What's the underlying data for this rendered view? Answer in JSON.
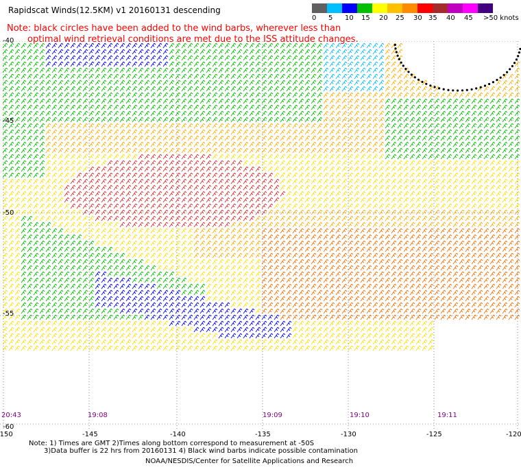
{
  "header": {
    "title": "Rapidscat Winds(12.5KM)  v1  20160131  descending"
  },
  "note": {
    "line1": "Note: black circles have been added to the wind barbs, wherever less than",
    "line2": "optimal wind retrieval conditions are met due to the ISS attitude changes."
  },
  "legend": {
    "colors": [
      "#606060",
      "#00bfff",
      "#0000ff",
      "#00c000",
      "#ffff00",
      "#ffc000",
      "#ff8c00",
      "#ff0000",
      "#a52a2a",
      "#c000c0",
      "#ff00ff",
      "#400080"
    ],
    "labels": [
      "0",
      "5",
      "10",
      "15",
      "20",
      "25",
      "30",
      "35",
      "40",
      "45",
      ">50 knots"
    ]
  },
  "map": {
    "lat_labels": [
      "-40",
      "-45",
      "-50",
      "-55",
      "-60"
    ],
    "lon_labels": [
      "-150",
      "-145",
      "-140",
      "-135",
      "-130",
      "-125",
      "-120"
    ],
    "time_labels": [
      "20:43",
      "19:08",
      "19:09",
      "19:10",
      "19:11"
    ]
  },
  "footer": {
    "line1": "Note: 1) Times are GMT 2)Times along bottom correspond to measurement at -50S",
    "line2": "3)Data buffer is 22 hrs from 20160131 4) Black wind barbs indicate possible contamination",
    "line3": "NOAA/NESDIS/Center for Satellite Applications and Research"
  }
}
